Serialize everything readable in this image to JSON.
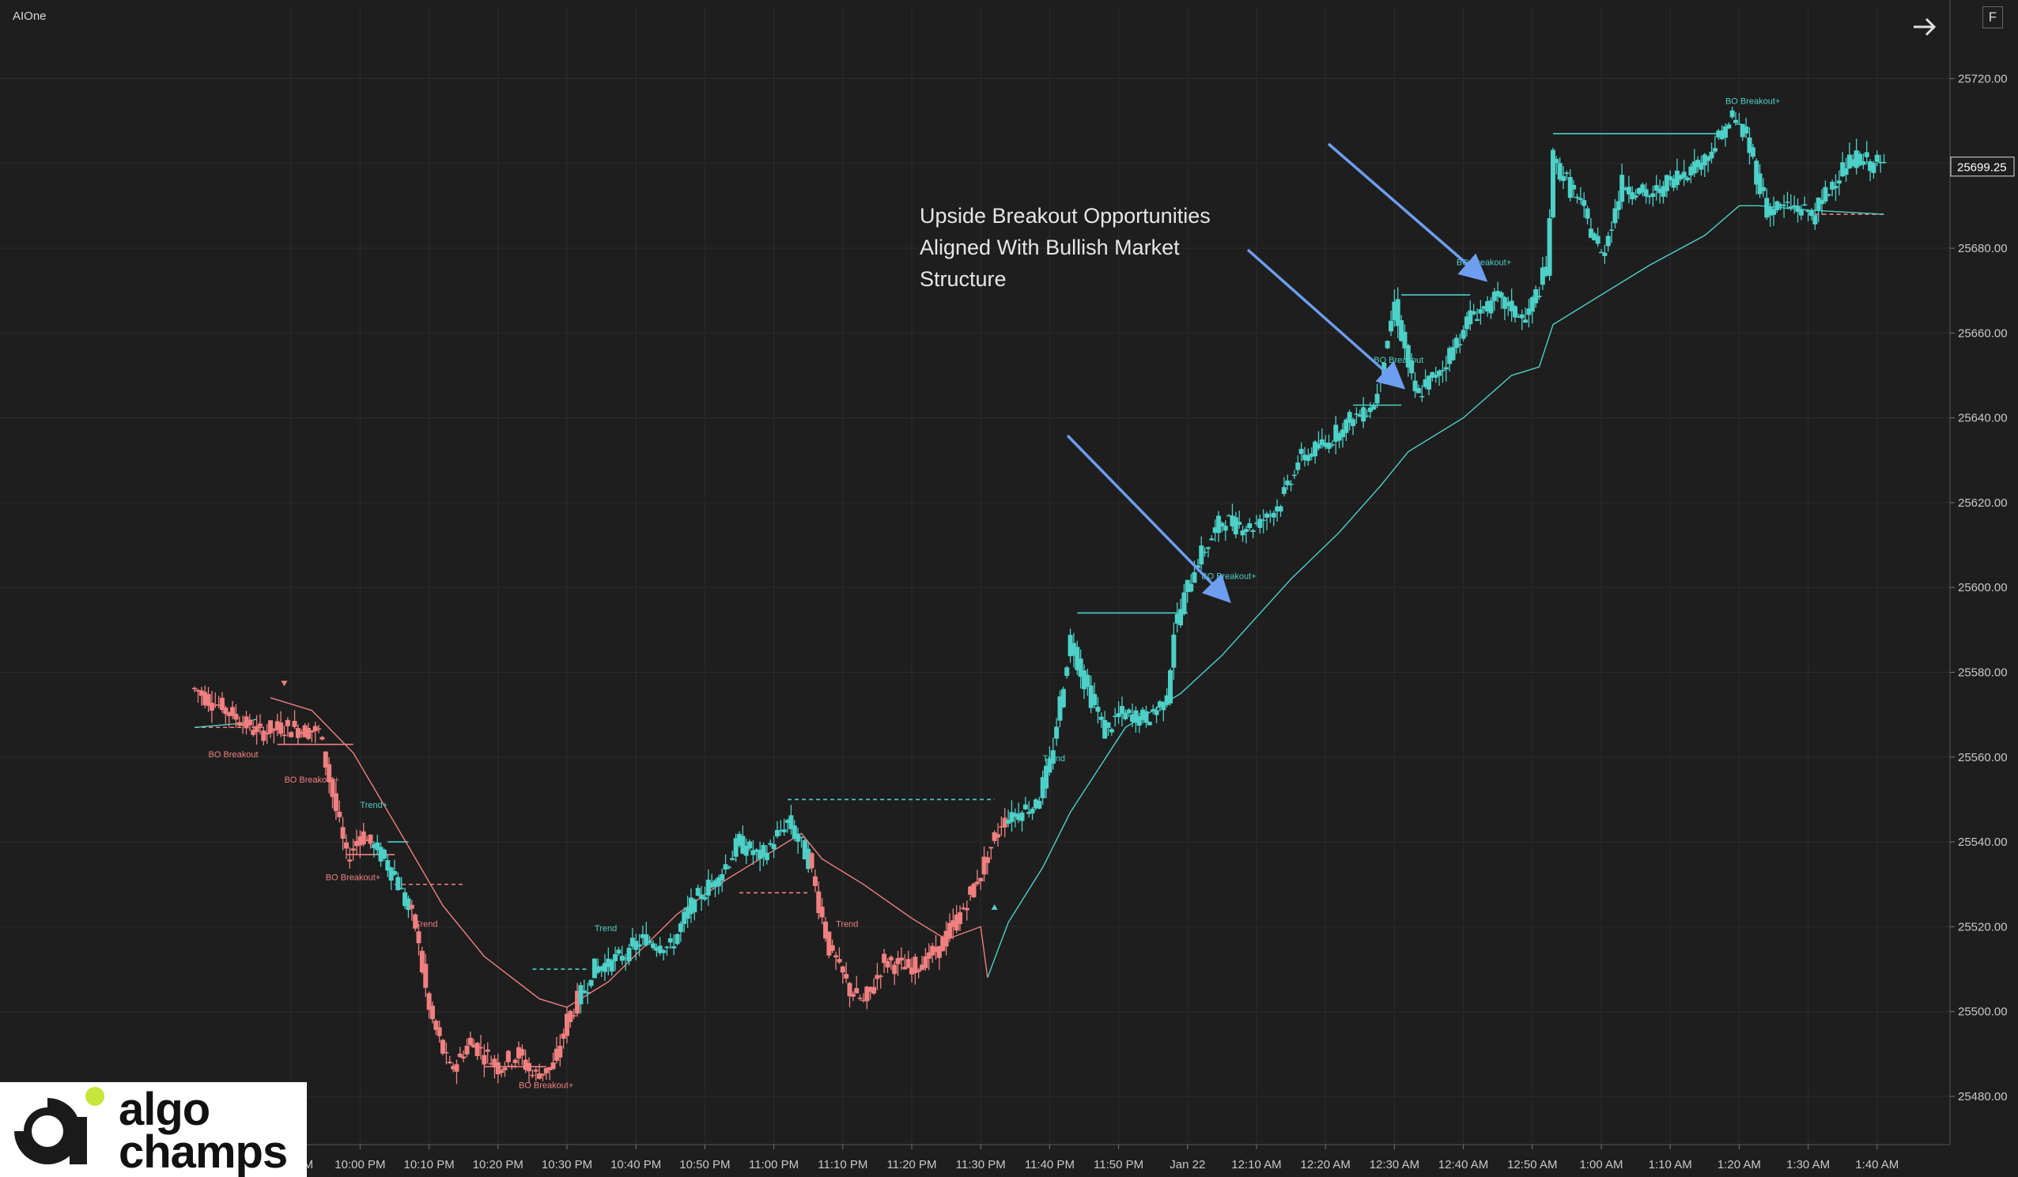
{
  "window": {
    "instrument_label": "AIOne",
    "f_button_label": "F"
  },
  "price_axis": {
    "labels": [
      "25720.00",
      "25700.00",
      "25680.00",
      "25660.00",
      "25640.00",
      "25620.00",
      "25600.00",
      "25580.00",
      "25560.00",
      "25540.00",
      "25520.00",
      "25500.00",
      "25480.00"
    ],
    "current_price": "25699.25"
  },
  "time_axis": {
    "labels": [
      "9:50 PM",
      "10:00 PM",
      "10:10 PM",
      "10:20 PM",
      "10:30 PM",
      "10:40 PM",
      "10:50 PM",
      "11:00 PM",
      "11:10 PM",
      "11:20 PM",
      "11:30 PM",
      "11:40 PM",
      "11:50 PM",
      "Jan 22",
      "12:10 AM",
      "12:20 AM",
      "12:30 AM",
      "12:40 AM",
      "12:50 AM",
      "1:00 AM",
      "1:10 AM",
      "1:20 AM",
      "1:30 AM",
      "1:40 AM"
    ]
  },
  "annotation": {
    "lines": [
      "Upside Breakout Opportunities",
      "Aligned With Bullish Market",
      "Structure"
    ]
  },
  "signals": [
    {
      "text": "BO Breakout",
      "color": "#f08080"
    },
    {
      "text": "BO Breakout+",
      "color": "#f08080"
    },
    {
      "text": "Trend+",
      "color": "#4dd0c8"
    },
    {
      "text": "BO Breakout+",
      "color": "#f08080"
    },
    {
      "text": "Trend",
      "color": "#f08080"
    },
    {
      "text": "BO Breakout+",
      "color": "#f08080"
    },
    {
      "text": "Trend",
      "color": "#4dd0c8"
    },
    {
      "text": "Trend",
      "color": "#f08080"
    },
    {
      "text": "Trend",
      "color": "#4dd0c8"
    },
    {
      "text": "BO Breakout+",
      "color": "#4dd0c8"
    },
    {
      "text": "BO Breakout",
      "color": "#4dd0c8"
    },
    {
      "text": "BO Breakout+",
      "color": "#4dd0c8"
    },
    {
      "text": "BO Breakout+",
      "color": "#4dd0c8"
    }
  ],
  "logo": {
    "line1": "algo",
    "line2": "champs"
  },
  "colors": {
    "bull": "#4dd0c8",
    "bear": "#f08080",
    "arrow": "#6d9ef0",
    "grid": "#2c2c2c",
    "background": "#1e1e1e"
  },
  "chart_data": {
    "type": "candlestick",
    "ylim": [
      25470,
      25731
    ],
    "close_path": [
      [
        "9:36 PM",
        25576
      ],
      [
        "9:45 PM",
        25566
      ],
      [
        "9:50 PM",
        25567
      ],
      [
        "9:54 PM",
        25566
      ],
      [
        "9:58 PM",
        25536
      ],
      [
        "10:00 PM",
        25542
      ],
      [
        "10:03 PM",
        25537
      ],
      [
        "10:05 PM",
        25532
      ],
      [
        "10:08 PM",
        25520
      ],
      [
        "10:10 PM",
        25500
      ],
      [
        "10:13 PM",
        25486
      ],
      [
        "10:16 PM",
        25493
      ],
      [
        "10:20 PM",
        25487
      ],
      [
        "10:23 PM",
        25490
      ],
      [
        "10:25 PM",
        25485
      ],
      [
        "10:28 PM",
        25487
      ],
      [
        "10:30 PM",
        25498
      ],
      [
        "10:34 PM",
        25510
      ],
      [
        "10:38 PM",
        25513
      ],
      [
        "10:41 PM",
        25517
      ],
      [
        "10:45 PM",
        25515
      ],
      [
        "10:48 PM",
        25525
      ],
      [
        "10:52 PM",
        25532
      ],
      [
        "10:55 PM",
        25540
      ],
      [
        "10:58 PM",
        25536
      ],
      [
        "11:02 PM",
        25545
      ],
      [
        "11:05 PM",
        25536
      ],
      [
        "11:08 PM",
        25515
      ],
      [
        "11:11 PM",
        25505
      ],
      [
        "11:13 PM",
        25502
      ],
      [
        "11:16 PM",
        25512
      ],
      [
        "11:20 PM",
        25510
      ],
      [
        "11:24 PM",
        25515
      ],
      [
        "11:27 PM",
        25523
      ],
      [
        "11:30 PM",
        25533
      ],
      [
        "11:33 PM",
        25545
      ],
      [
        "11:38 PM",
        25549
      ],
      [
        "11:40 PM",
        25558
      ],
      [
        "11:43 PM",
        25588
      ],
      [
        "11:45 PM",
        25578
      ],
      [
        "11:48 PM",
        25566
      ],
      [
        "11:50 PM",
        25570
      ],
      [
        "11:54 PM",
        25569
      ],
      [
        "11:57 PM",
        25574
      ],
      [
        "11:58 PM",
        25590
      ],
      [
        "12:01 AM",
        25605
      ],
      [
        "12:05 AM",
        25616
      ],
      [
        "12:09 AM",
        25614
      ],
      [
        "12:13 AM",
        25619
      ],
      [
        "12:16 AM",
        25630
      ],
      [
        "12:20 AM",
        25634
      ],
      [
        "12:24 AM",
        25640
      ],
      [
        "12:27 AM",
        25643
      ],
      [
        "12:30 AM",
        25667
      ],
      [
        "12:33 AM",
        25645
      ],
      [
        "12:37 AM",
        25652
      ],
      [
        "12:41 AM",
        25664
      ],
      [
        "12:45 AM",
        25668
      ],
      [
        "12:49 AM",
        25663
      ],
      [
        "12:52 AM",
        25675
      ],
      [
        "12:53 AM",
        25701
      ],
      [
        "12:57 AM",
        25690
      ],
      [
        "1:00 AM",
        25678
      ],
      [
        "1:03 AM",
        25695
      ],
      [
        "1:07 AM",
        25692
      ],
      [
        "1:11 AM",
        25697
      ],
      [
        "1:15 AM",
        25701
      ],
      [
        "1:19 AM",
        25711
      ],
      [
        "1:21 AM",
        25706
      ],
      [
        "1:24 AM",
        25689
      ],
      [
        "1:27 AM",
        25690
      ],
      [
        "1:31 AM",
        25688
      ],
      [
        "1:34 AM",
        25697
      ],
      [
        "1:37 AM",
        25701
      ],
      [
        "1:41 AM",
        25699.25
      ]
    ],
    "trail_stop": [
      [
        "9:36 PM",
        25567
      ],
      [
        "9:43 PM",
        25568
      ],
      [
        "9:45 PM",
        25569
      ],
      [
        "9:47 PM",
        25574
      ],
      [
        "9:53 PM",
        25571
      ],
      [
        "9:59 PM",
        25561
      ],
      [
        "10:07 PM",
        25539
      ],
      [
        "10:12 PM",
        25525
      ],
      [
        "10:18 PM",
        25513
      ],
      [
        "10:26 PM",
        25503
      ],
      [
        "10:30 PM",
        25501
      ],
      [
        "10:36 PM",
        25507
      ],
      [
        "10:46 PM",
        25523
      ],
      [
        "10:53 PM",
        25531
      ],
      [
        "11:00 PM",
        25538
      ],
      [
        "11:04 PM",
        25542
      ],
      [
        "11:07 PM",
        25536
      ],
      [
        "11:13 PM",
        25530
      ],
      [
        "11:20 PM",
        25522
      ],
      [
        "11:25 PM",
        25517
      ],
      [
        "11:30 PM",
        25520
      ],
      [
        "11:31 PM",
        25508
      ],
      [
        "11:34 PM",
        25521
      ],
      [
        "11:39 PM",
        25534
      ],
      [
        "11:43 PM",
        25547
      ],
      [
        "11:51 PM",
        25567
      ],
      [
        "11:59 PM",
        25575
      ],
      [
        "12:05 AM",
        25584
      ],
      [
        "12:15 AM",
        25602
      ],
      [
        "12:22 AM",
        25613
      ],
      [
        "12:28 AM",
        25624
      ],
      [
        "12:32 AM",
        25632
      ],
      [
        "12:40 AM",
        25640
      ],
      [
        "12:47 AM",
        25650
      ],
      [
        "12:51 AM",
        25652
      ],
      [
        "12:53 AM",
        25662
      ],
      [
        "1:00 AM",
        25669
      ],
      [
        "1:07 AM",
        25676
      ],
      [
        "1:15 AM",
        25683
      ],
      [
        "1:20 AM",
        25690
      ],
      [
        "1:23 AM",
        25690
      ],
      [
        "1:30 AM",
        25689
      ],
      [
        "1:41 AM",
        25688
      ]
    ],
    "breakout_levels": [
      {
        "from": "9:36 PM",
        "to": "9:46 PM",
        "price": 25567,
        "style": "dashed",
        "color": "bear"
      },
      {
        "from": "9:48 PM",
        "to": "9:59 PM",
        "price": 25563,
        "style": "solid",
        "color": "bear"
      },
      {
        "from": "9:58 PM",
        "to": "10:05 PM",
        "price": 25537,
        "style": "solid",
        "color": "bear"
      },
      {
        "from": "10:05 PM",
        "to": "10:15 PM",
        "price": 25530,
        "style": "dashed",
        "color": "bear"
      },
      {
        "from": "10:04 PM",
        "to": "10:07 PM",
        "price": 25540,
        "style": "solid",
        "color": "bull"
      },
      {
        "from": "10:18 PM",
        "to": "10:27 PM",
        "price": 25487,
        "style": "solid",
        "color": "bear"
      },
      {
        "from": "10:25 PM",
        "to": "10:33 PM",
        "price": 25510,
        "style": "dashed",
        "color": "bull"
      },
      {
        "from": "10:55 PM",
        "to": "11:05 PM",
        "price": 25528,
        "style": "dashed",
        "color": "bear"
      },
      {
        "from": "11:02 PM",
        "to": "11:32 PM",
        "price": 25550,
        "style": "dashed",
        "color": "bull"
      },
      {
        "from": "11:44 PM",
        "to": "12:00 AM",
        "price": 25594,
        "style": "solid",
        "color": "bull"
      },
      {
        "from": "12:24 AM",
        "to": "12:31 AM",
        "price": 25643,
        "style": "solid",
        "color": "bull"
      },
      {
        "from": "12:31 AM",
        "to": "12:41 AM",
        "price": 25669,
        "style": "solid",
        "color": "bull"
      },
      {
        "from": "12:53 AM",
        "to": "1:18 AM",
        "price": 25707,
        "style": "solid",
        "color": "bull"
      },
      {
        "from": "1:30 AM",
        "to": "1:41 AM",
        "price": 25688,
        "style": "dashed",
        "color": "bear"
      }
    ]
  }
}
